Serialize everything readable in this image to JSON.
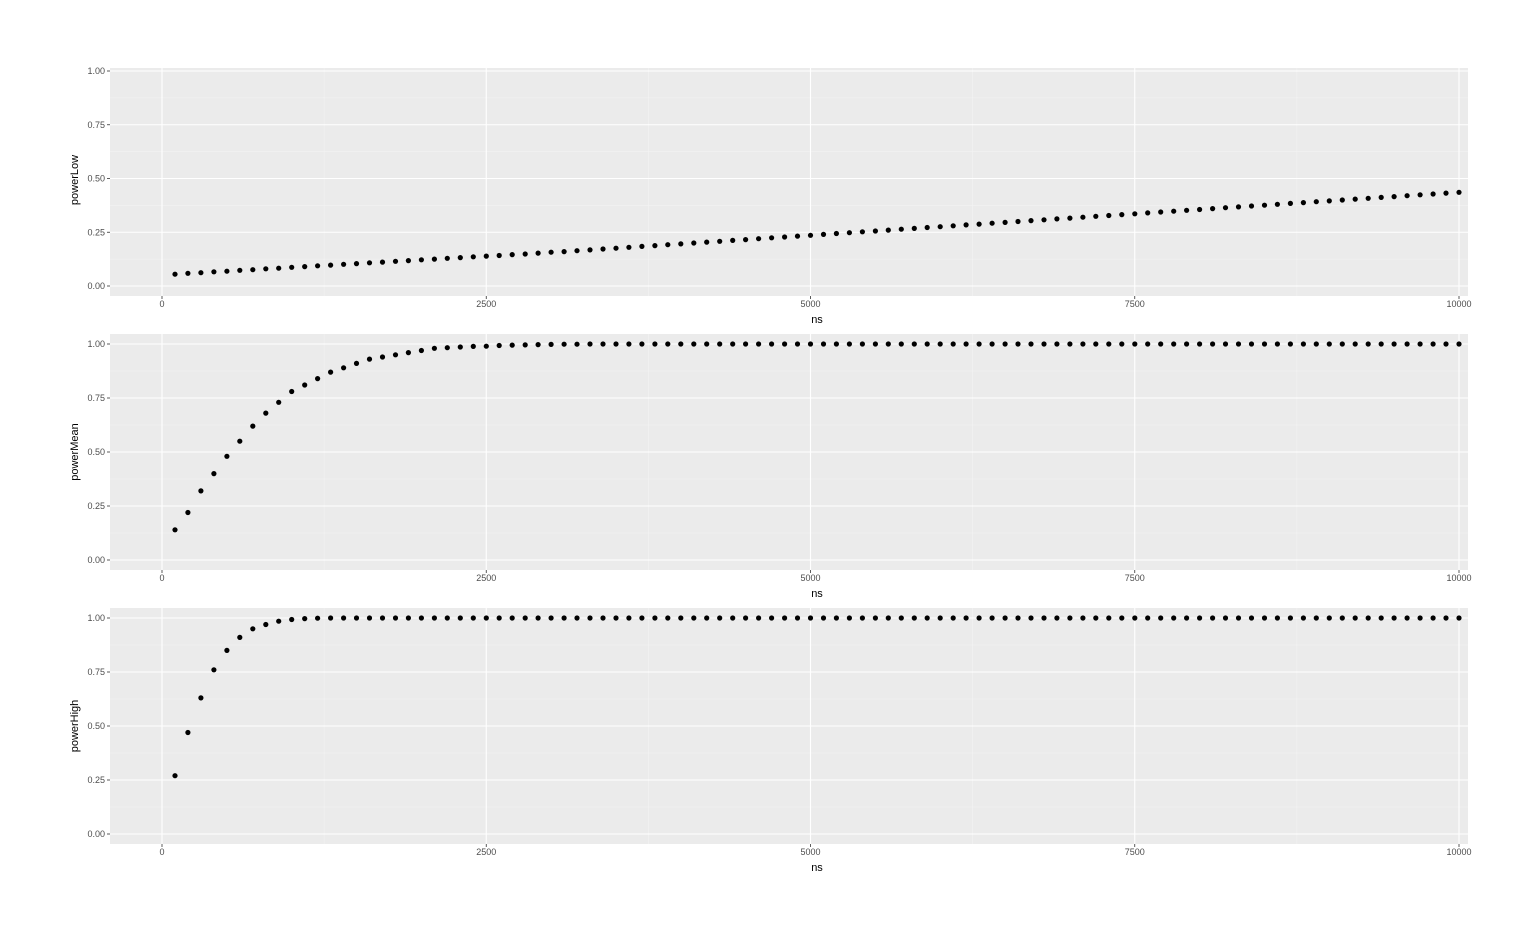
{
  "style": {
    "panel_bg": "#ebebeb",
    "grid_major": "#ffffff",
    "grid_minor": "#f4f4f4",
    "point_color": "#000000",
    "tick_text": "#4d4d4d",
    "title_text": "#000000"
  },
  "chart_data": [
    {
      "type": "scatter",
      "xlabel": "ns",
      "ylabel": "powerLow",
      "xlim": [
        -200,
        10000
      ],
      "ylim": [
        0,
        1
      ],
      "x_ticks": [
        "0",
        "2500",
        "5000",
        "7500",
        "10000"
      ],
      "y_ticks": [
        "0.00",
        "0.25",
        "0.50",
        "0.75",
        "1.00"
      ],
      "grid": true,
      "x": [
        100,
        200,
        300,
        400,
        500,
        600,
        700,
        800,
        900,
        1000,
        1100,
        1200,
        1300,
        1400,
        1500,
        1600,
        1700,
        1800,
        1900,
        2000,
        2100,
        2200,
        2300,
        2400,
        2500,
        2600,
        2700,
        2800,
        2900,
        3000,
        3100,
        3200,
        3300,
        3400,
        3500,
        3600,
        3700,
        3800,
        3900,
        4000,
        4100,
        4200,
        4300,
        4400,
        4500,
        4600,
        4700,
        4800,
        4900,
        5000,
        5100,
        5200,
        5300,
        5400,
        5500,
        5600,
        5700,
        5800,
        5900,
        6000,
        6100,
        6200,
        6300,
        6400,
        6500,
        6600,
        6700,
        6800,
        6900,
        7000,
        7100,
        7200,
        7300,
        7400,
        7500,
        7600,
        7700,
        7800,
        7900,
        8000,
        8100,
        8200,
        8300,
        8400,
        8500,
        8600,
        8700,
        8800,
        8900,
        9000,
        9100,
        9200,
        9300,
        9400,
        9500,
        9600,
        9700,
        9800,
        9900,
        10000
      ],
      "y": [
        0.055,
        0.059,
        0.062,
        0.066,
        0.069,
        0.073,
        0.076,
        0.08,
        0.083,
        0.087,
        0.09,
        0.094,
        0.097,
        0.101,
        0.104,
        0.108,
        0.111,
        0.115,
        0.118,
        0.122,
        0.125,
        0.129,
        0.132,
        0.136,
        0.139,
        0.142,
        0.146,
        0.149,
        0.153,
        0.157,
        0.16,
        0.164,
        0.168,
        0.172,
        0.176,
        0.18,
        0.184,
        0.188,
        0.192,
        0.196,
        0.2,
        0.204,
        0.208,
        0.212,
        0.216,
        0.22,
        0.224,
        0.228,
        0.232,
        0.236,
        0.24,
        0.244,
        0.248,
        0.252,
        0.256,
        0.26,
        0.264,
        0.268,
        0.272,
        0.276,
        0.28,
        0.284,
        0.288,
        0.292,
        0.296,
        0.3,
        0.304,
        0.308,
        0.312,
        0.316,
        0.32,
        0.324,
        0.328,
        0.332,
        0.336,
        0.34,
        0.344,
        0.348,
        0.352,
        0.356,
        0.36,
        0.364,
        0.368,
        0.372,
        0.376,
        0.38,
        0.384,
        0.388,
        0.392,
        0.396,
        0.4,
        0.404,
        0.408,
        0.412,
        0.416,
        0.42,
        0.424,
        0.428,
        0.432,
        0.436
      ]
    },
    {
      "type": "scatter",
      "xlabel": "ns",
      "ylabel": "powerMean",
      "xlim": [
        -200,
        10000
      ],
      "ylim": [
        0,
        1
      ],
      "x_ticks": [
        "0",
        "2500",
        "5000",
        "7500",
        "10000"
      ],
      "y_ticks": [
        "0.00",
        "0.25",
        "0.50",
        "0.75",
        "1.00"
      ],
      "grid": true,
      "x": [
        100,
        200,
        300,
        400,
        500,
        600,
        700,
        800,
        900,
        1000,
        1100,
        1200,
        1300,
        1400,
        1500,
        1600,
        1700,
        1800,
        1900,
        2000,
        2100,
        2200,
        2300,
        2400,
        2500,
        2600,
        2700,
        2800,
        2900,
        3000,
        3100,
        3200,
        3300,
        3400,
        3500,
        3600,
        3700,
        3800,
        3900,
        4000,
        4100,
        4200,
        4300,
        4400,
        4500,
        4600,
        4700,
        4800,
        4900,
        5000,
        5100,
        5200,
        5300,
        5400,
        5500,
        5600,
        5700,
        5800,
        5900,
        6000,
        6100,
        6200,
        6300,
        6400,
        6500,
        6600,
        6700,
        6800,
        6900,
        7000,
        7100,
        7200,
        7300,
        7400,
        7500,
        7600,
        7700,
        7800,
        7900,
        8000,
        8100,
        8200,
        8300,
        8400,
        8500,
        8600,
        8700,
        8800,
        8900,
        9000,
        9100,
        9200,
        9300,
        9400,
        9500,
        9600,
        9700,
        9800,
        9900,
        10000
      ],
      "y": [
        0.14,
        0.22,
        0.32,
        0.4,
        0.48,
        0.55,
        0.62,
        0.68,
        0.73,
        0.78,
        0.81,
        0.84,
        0.87,
        0.89,
        0.91,
        0.93,
        0.94,
        0.95,
        0.96,
        0.97,
        0.98,
        0.983,
        0.986,
        0.989,
        0.99,
        0.993,
        0.995,
        0.996,
        0.997,
        0.998,
        0.999,
        0.999,
        1,
        1,
        1,
        1,
        1,
        1,
        1,
        1,
        1,
        1,
        1,
        1,
        1,
        1,
        1,
        1,
        1,
        1,
        1,
        1,
        1,
        1,
        1,
        1,
        1,
        1,
        1,
        1,
        1,
        1,
        1,
        1,
        1,
        1,
        1,
        1,
        1,
        1,
        1,
        1,
        1,
        1,
        1,
        1,
        1,
        1,
        1,
        1,
        1,
        1,
        1,
        1,
        1,
        1,
        1,
        1,
        1,
        1,
        1,
        1,
        1,
        1,
        1,
        1,
        1,
        1,
        1,
        1
      ]
    },
    {
      "type": "scatter",
      "xlabel": "ns",
      "ylabel": "powerHigh",
      "xlim": [
        -200,
        10000
      ],
      "ylim": [
        0,
        1
      ],
      "x_ticks": [
        "0",
        "2500",
        "5000",
        "7500",
        "10000"
      ],
      "y_ticks": [
        "0.00",
        "0.25",
        "0.50",
        "0.75",
        "1.00"
      ],
      "grid": true,
      "x": [
        100,
        200,
        300,
        400,
        500,
        600,
        700,
        800,
        900,
        1000,
        1100,
        1200,
        1300,
        1400,
        1500,
        1600,
        1700,
        1800,
        1900,
        2000,
        2100,
        2200,
        2300,
        2400,
        2500,
        2600,
        2700,
        2800,
        2900,
        3000,
        3100,
        3200,
        3300,
        3400,
        3500,
        3600,
        3700,
        3800,
        3900,
        4000,
        4100,
        4200,
        4300,
        4400,
        4500,
        4600,
        4700,
        4800,
        4900,
        5000,
        5100,
        5200,
        5300,
        5400,
        5500,
        5600,
        5700,
        5800,
        5900,
        6000,
        6100,
        6200,
        6300,
        6400,
        6500,
        6600,
        6700,
        6800,
        6900,
        7000,
        7100,
        7200,
        7300,
        7400,
        7500,
        7600,
        7700,
        7800,
        7900,
        8000,
        8100,
        8200,
        8300,
        8400,
        8500,
        8600,
        8700,
        8800,
        8900,
        9000,
        9100,
        9200,
        9300,
        9400,
        9500,
        9600,
        9700,
        9800,
        9900,
        10000
      ],
      "y": [
        0.27,
        0.47,
        0.63,
        0.76,
        0.85,
        0.91,
        0.95,
        0.97,
        0.985,
        0.993,
        0.997,
        0.999,
        1,
        1,
        1,
        1,
        1,
        1,
        1,
        1,
        1,
        1,
        1,
        1,
        1,
        1,
        1,
        1,
        1,
        1,
        1,
        1,
        1,
        1,
        1,
        1,
        1,
        1,
        1,
        1,
        1,
        1,
        1,
        1,
        1,
        1,
        1,
        1,
        1,
        1,
        1,
        1,
        1,
        1,
        1,
        1,
        1,
        1,
        1,
        1,
        1,
        1,
        1,
        1,
        1,
        1,
        1,
        1,
        1,
        1,
        1,
        1,
        1,
        1,
        1,
        1,
        1,
        1,
        1,
        1,
        1,
        1,
        1,
        1,
        1,
        1,
        1,
        1,
        1,
        1,
        1,
        1,
        1,
        1,
        1,
        1,
        1,
        1,
        1,
        1
      ]
    }
  ]
}
